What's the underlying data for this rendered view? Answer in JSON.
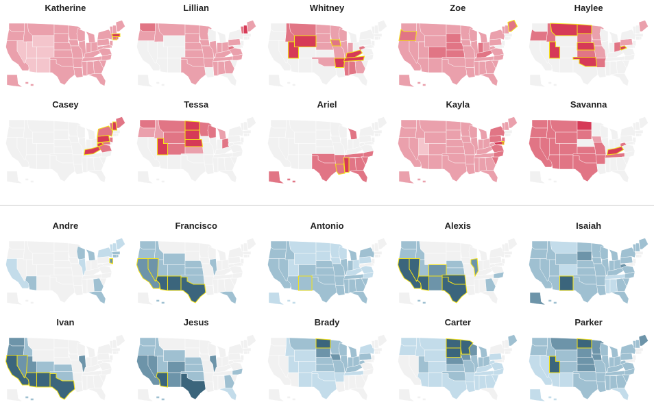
{
  "colors": {
    "empty": "#f1f1f1",
    "girl": [
      "#f1f1f1",
      "#f4c5cc",
      "#eaa0ac",
      "#e17585",
      "#d63a57"
    ],
    "boy": [
      "#f1f1f1",
      "#c3dcea",
      "#9fc0d1",
      "#6d94a9",
      "#3b657c"
    ],
    "highlight": "#f3e21a"
  },
  "girls": [
    {
      "name": "Katherine",
      "fills": {
        "WA": 2,
        "OR": 2,
        "CA": 2,
        "NV": 1,
        "ID": 2,
        "MT": 2,
        "WY": 1,
        "UT": 1,
        "CO": 1,
        "AZ": 1,
        "NM": 1,
        "ND": 2,
        "SD": 2,
        "NE": 2,
        "KS": 2,
        "OK": 2,
        "TX": 2,
        "MN": 2,
        "IA": 2,
        "MO": 2,
        "AR": 2,
        "LA": 2,
        "WI": 2,
        "IL": 2,
        "MS": 2,
        "MI": 2,
        "IN": 2,
        "KY": 2,
        "TN": 2,
        "AL": 2,
        "OH": 2,
        "GA": 2,
        "FL": 2,
        "SC": 2,
        "NC": 2,
        "VA": 2,
        "WV": 2,
        "PA": 2,
        "NY": 2,
        "MD": 2,
        "DE": 2,
        "NJ": 2,
        "CT": 3,
        "RI": 3,
        "MA": 4,
        "VT": 2,
        "NH": 2,
        "ME": 2,
        "AK": 2,
        "HI": 2
      },
      "hl": [
        "MA",
        "CT"
      ]
    },
    {
      "name": "Lillian",
      "fills": {
        "WA": 3,
        "OR": 2,
        "ID": 2,
        "MT": 2,
        "ND": 2,
        "SD": 2,
        "NE": 2,
        "KS": 2,
        "OK": 2,
        "TX": 2,
        "MN": 2,
        "IA": 2,
        "MO": 2,
        "AR": 2,
        "IL": 2,
        "IN": 2,
        "KY": 2,
        "TN": 2,
        "OH": 2,
        "WV": 3,
        "PA": 2,
        "VA": 2,
        "NC": 2,
        "GA": 2,
        "AL": 2,
        "MS": 2,
        "VT": 3,
        "NH": 4,
        "ME": 2
      },
      "hl": []
    },
    {
      "name": "Whitney",
      "fills": {
        "MT": 3,
        "ID": 3,
        "UT": 4,
        "WY": 4,
        "SD": 2,
        "NE": 2,
        "IA": 3,
        "MO": 2,
        "AR": 4,
        "TN": 4,
        "KY": 4,
        "WV": 3,
        "MS": 3,
        "AL": 3,
        "GA": 2,
        "WI": 2,
        "ND": 2,
        "OK": 2,
        "MN": 2,
        "IL": 2,
        "IN": 2
      },
      "hl": [
        "UT",
        "WY",
        "AR",
        "TN",
        "KY",
        "IA"
      ]
    },
    {
      "name": "Zoe",
      "fills": {
        "WA": 2,
        "OR": 3,
        "CA": 2,
        "NV": 2,
        "ID": 2,
        "MT": 2,
        "WY": 2,
        "UT": 2,
        "CO": 3,
        "AZ": 2,
        "NM": 2,
        "ND": 2,
        "SD": 3,
        "NE": 3,
        "KS": 3,
        "OK": 2,
        "TX": 2,
        "MN": 2,
        "IA": 2,
        "MO": 2,
        "AR": 2,
        "LA": 2,
        "WI": 2,
        "IL": 2,
        "MS": 2,
        "MI": 2,
        "IN": 3,
        "KY": 3,
        "TN": 2,
        "AL": 2,
        "OH": 2,
        "GA": 2,
        "FL": 2,
        "SC": 2,
        "NC": 2,
        "VA": 2,
        "WV": 2,
        "PA": 2,
        "NY": 2,
        "VT": 2,
        "NH": 2,
        "ME": 3,
        "AK": 2,
        "HI": 2
      },
      "hl": [
        "OR",
        "ME"
      ]
    },
    {
      "name": "Haylee",
      "fills": {
        "OR": 3,
        "MT": 4,
        "ID": 3,
        "UT": 4,
        "ND": 4,
        "SD": 3,
        "NE": 4,
        "KS": 3,
        "OK": 4,
        "AR": 3,
        "MN": 2,
        "IA": 2,
        "MO": 2,
        "WV": 4,
        "OH": 3,
        "PA": 2,
        "ME": 2
      },
      "hl": [
        "MT",
        "UT",
        "ND",
        "NE",
        "OK",
        "WV"
      ]
    },
    {
      "name": "Casey",
      "fills": {
        "KY": 4,
        "WV": 4,
        "VA": 3,
        "PA": 4,
        "NY": 3,
        "VT": 3,
        "NH": 4,
        "ME": 3,
        "NJ": 3,
        "MD": 3
      },
      "hl": [
        "KY",
        "WV",
        "PA",
        "NH",
        "NY"
      ]
    },
    {
      "name": "Tessa",
      "fills": {
        "WA": 3,
        "OR": 2,
        "ID": 2,
        "MT": 3,
        "ND": 4,
        "SD": 4,
        "NE": 4,
        "MN": 3,
        "UT": 4,
        "WY": 3,
        "CO": 3,
        "WI": 3,
        "MI": 2,
        "OH": 3,
        "KS": 2
      },
      "hl": [
        "UT",
        "ND",
        "SD",
        "NE"
      ]
    },
    {
      "name": "Ariel",
      "fills": {
        "TX": 3,
        "OK": 3,
        "LA": 3,
        "MS": 4,
        "AR": 3,
        "AL": 3,
        "GA": 3,
        "FL": 3,
        "SC": 3,
        "NC": 3,
        "TN": 3,
        "MI": 3,
        "AK": 3,
        "HI": 3
      },
      "hl": [
        "MS",
        "LA"
      ]
    },
    {
      "name": "Kayla",
      "fills": {
        "WA": 2,
        "OR": 2,
        "CA": 2,
        "NV": 2,
        "ID": 2,
        "MT": 2,
        "WY": 2,
        "UT": 1,
        "CO": 2,
        "AZ": 2,
        "NM": 2,
        "ND": 2,
        "SD": 2,
        "NE": 2,
        "KS": 2,
        "OK": 2,
        "TX": 2,
        "MN": 2,
        "IA": 2,
        "MO": 2,
        "AR": 2,
        "LA": 2,
        "WI": 2,
        "IL": 2,
        "MS": 2,
        "MI": 2,
        "IN": 2,
        "KY": 2,
        "TN": 2,
        "AL": 2,
        "OH": 2,
        "GA": 2,
        "FL": 2,
        "SC": 3,
        "NC": 3,
        "VA": 3,
        "WV": 2,
        "PA": 3,
        "NY": 3,
        "MD": 4,
        "DE": 4,
        "NJ": 3,
        "VT": 2,
        "NH": 2,
        "ME": 2,
        "AK": 2,
        "HI": 2
      },
      "hl": [
        "DE"
      ]
    },
    {
      "name": "Savanna",
      "fills": {
        "WA": 3,
        "OR": 3,
        "CA": 3,
        "NV": 3,
        "ID": 3,
        "MT": 3,
        "WY": 3,
        "UT": 3,
        "CO": 3,
        "AZ": 3,
        "NM": 3,
        "TX": 3,
        "OK": 3,
        "KS": 3,
        "ND": 4,
        "SD": 3,
        "MO": 3,
        "AR": 3,
        "KY": 4,
        "TN": 3,
        "WV": 3,
        "IA": 2
      },
      "hl": [
        "KY"
      ]
    }
  ],
  "boys": [
    {
      "name": "Andre",
      "fills": {
        "CA": 1,
        "AZ": 2,
        "MI": 2,
        "WI": 2,
        "IL": 1,
        "FL": 2,
        "GA": 2,
        "NY": 1,
        "VT": 1,
        "NH": 1,
        "ME": 1,
        "MA": 2,
        "CT": 2,
        "RI": 2,
        "NJ": 3
      },
      "hl": [
        "NJ"
      ]
    },
    {
      "name": "Francisco",
      "fills": {
        "WA": 2,
        "OR": 2,
        "CA": 3,
        "NV": 3,
        "ID": 2,
        "UT": 2,
        "WY": 2,
        "CO": 2,
        "AZ": 4,
        "NM": 4,
        "TX": 4,
        "NE": 2,
        "KS": 2,
        "OK": 2,
        "IL": 2,
        "FL": 2,
        "HI": 2
      },
      "hl": [
        "CA",
        "NV",
        "AZ",
        "NM",
        "TX"
      ]
    },
    {
      "name": "Antonio",
      "fills": {
        "WA": 2,
        "OR": 2,
        "CA": 2,
        "NV": 2,
        "ID": 2,
        "MT": 1,
        "WY": 1,
        "UT": 1,
        "CO": 2,
        "AZ": 2,
        "NM": 2,
        "TX": 2,
        "OK": 2,
        "KS": 2,
        "NE": 2,
        "SD": 1,
        "ND": 1,
        "MN": 1,
        "IA": 1,
        "MO": 2,
        "AR": 2,
        "LA": 2,
        "MS": 2,
        "AL": 2,
        "GA": 2,
        "FL": 2,
        "SC": 2,
        "NC": 1,
        "VA": 1,
        "TN": 2,
        "KY": 1,
        "IL": 2,
        "IN": 2,
        "OH": 1,
        "MI": 2,
        "WI": 1,
        "PA": 1,
        "NY": 2,
        "AK": 1,
        "HI": 1
      },
      "hl": [
        "NM"
      ]
    },
    {
      "name": "Alexis",
      "fills": {
        "WA": 2,
        "OR": 2,
        "CA": 4,
        "NV": 4,
        "ID": 2,
        "UT": 2,
        "CO": 3,
        "AZ": 4,
        "NM": 3,
        "TX": 4,
        "OK": 4,
        "KS": 2,
        "NE": 2,
        "IL": 3,
        "NC": 2,
        "GA": 2,
        "HI": 2
      },
      "hl": [
        "CA",
        "NV",
        "AZ",
        "TX",
        "OK",
        "CO",
        "IL"
      ]
    },
    {
      "name": "Isaiah",
      "fills": {
        "WA": 2,
        "OR": 2,
        "CA": 2,
        "NV": 2,
        "ID": 2,
        "MT": 1,
        "WY": 2,
        "UT": 2,
        "CO": 1,
        "AZ": 2,
        "NM": 4,
        "ND": 2,
        "SD": 3,
        "NE": 2,
        "KS": 2,
        "OK": 2,
        "TX": 2,
        "MN": 2,
        "IA": 2,
        "MO": 2,
        "AR": 2,
        "LA": 2,
        "WI": 2,
        "IL": 2,
        "MS": 1,
        "MI": 2,
        "IN": 2,
        "KY": 2,
        "TN": 1,
        "AL": 1,
        "OH": 2,
        "GA": 2,
        "FL": 2,
        "SC": 2,
        "NC": 2,
        "VA": 2,
        "WV": 3,
        "PA": 2,
        "NY": 2,
        "VT": 2,
        "NH": 2,
        "ME": 2,
        "AK": 3,
        "HI": 2
      },
      "hl": [
        "NM"
      ]
    },
    {
      "name": "Ivan",
      "fills": {
        "WA": 3,
        "OR": 3,
        "CA": 4,
        "NV": 3,
        "ID": 2,
        "UT": 3,
        "AZ": 4,
        "NM": 4,
        "TX": 4,
        "OK": 2,
        "KS": 2,
        "CO": 2,
        "IL": 3,
        "HI": 2
      },
      "hl": [
        "CA",
        "NV",
        "AZ",
        "NM",
        "TX"
      ]
    },
    {
      "name": "Jesus",
      "fills": {
        "WA": 2,
        "OR": 2,
        "CA": 3,
        "NV": 3,
        "ID": 2,
        "UT": 2,
        "WY": 2,
        "CO": 3,
        "AZ": 4,
        "NM": 3,
        "TX": 4,
        "OK": 2,
        "KS": 2,
        "NE": 2,
        "IL": 3,
        "GA": 2,
        "NC": 2,
        "FL": 1,
        "HI": 2
      },
      "hl": [
        "AZ"
      ]
    },
    {
      "name": "Brady",
      "fills": {
        "MT": 2,
        "ND": 4,
        "SD": 3,
        "NE": 2,
        "KS": 2,
        "IA": 3,
        "MN": 2,
        "WI": 2,
        "MO": 2,
        "IL": 2,
        "IN": 2,
        "OH": 2,
        "MI": 2,
        "KY": 2,
        "WV": 2,
        "PA": 2,
        "NY": 1,
        "WY": 1,
        "CO": 1,
        "OK": 1,
        "AR": 1,
        "TN": 1,
        "ID": 1,
        "UT": 1,
        "NM": 1,
        "TX": 1
      },
      "hl": [
        "ND"
      ]
    },
    {
      "name": "Carter",
      "fills": {
        "WA": 1,
        "OR": 1,
        "ID": 1,
        "MT": 1,
        "WY": 1,
        "UT": 2,
        "CO": 1,
        "AZ": 1,
        "NM": 1,
        "ND": 4,
        "SD": 4,
        "NE": 3,
        "KS": 2,
        "OK": 2,
        "TX": 1,
        "MN": 4,
        "IA": 3,
        "MO": 2,
        "AR": 1,
        "LA": 1,
        "WI": 3,
        "IL": 2,
        "MS": 1,
        "MI": 2,
        "IN": 2,
        "KY": 1,
        "TN": 1,
        "AL": 1,
        "OH": 2,
        "GA": 1,
        "SC": 1,
        "NC": 1,
        "VA": 1,
        "WV": 1,
        "PA": 1,
        "ME": 2
      },
      "hl": [
        "ND",
        "SD",
        "MN"
      ]
    },
    {
      "name": "Parker",
      "fills": {
        "WA": 2,
        "OR": 2,
        "CA": 1,
        "NV": 1,
        "ID": 2,
        "MT": 3,
        "WY": 2,
        "UT": 4,
        "CO": 2,
        "AZ": 1,
        "NM": 1,
        "ND": 4,
        "SD": 3,
        "NE": 3,
        "KS": 3,
        "OK": 2,
        "TX": 2,
        "MN": 3,
        "IA": 3,
        "MO": 2,
        "AR": 2,
        "LA": 2,
        "WI": 2,
        "IL": 2,
        "MS": 2,
        "MI": 2,
        "IN": 2,
        "KY": 2,
        "TN": 2,
        "AL": 2,
        "OH": 2,
        "GA": 2,
        "FL": 1,
        "SC": 2,
        "NC": 2,
        "VA": 2,
        "WV": 2,
        "PA": 2,
        "NY": 2,
        "VT": 2,
        "NH": 2,
        "ME": 3,
        "AK": 1,
        "HI": 1
      },
      "hl": [
        "ND",
        "UT"
      ]
    }
  ]
}
